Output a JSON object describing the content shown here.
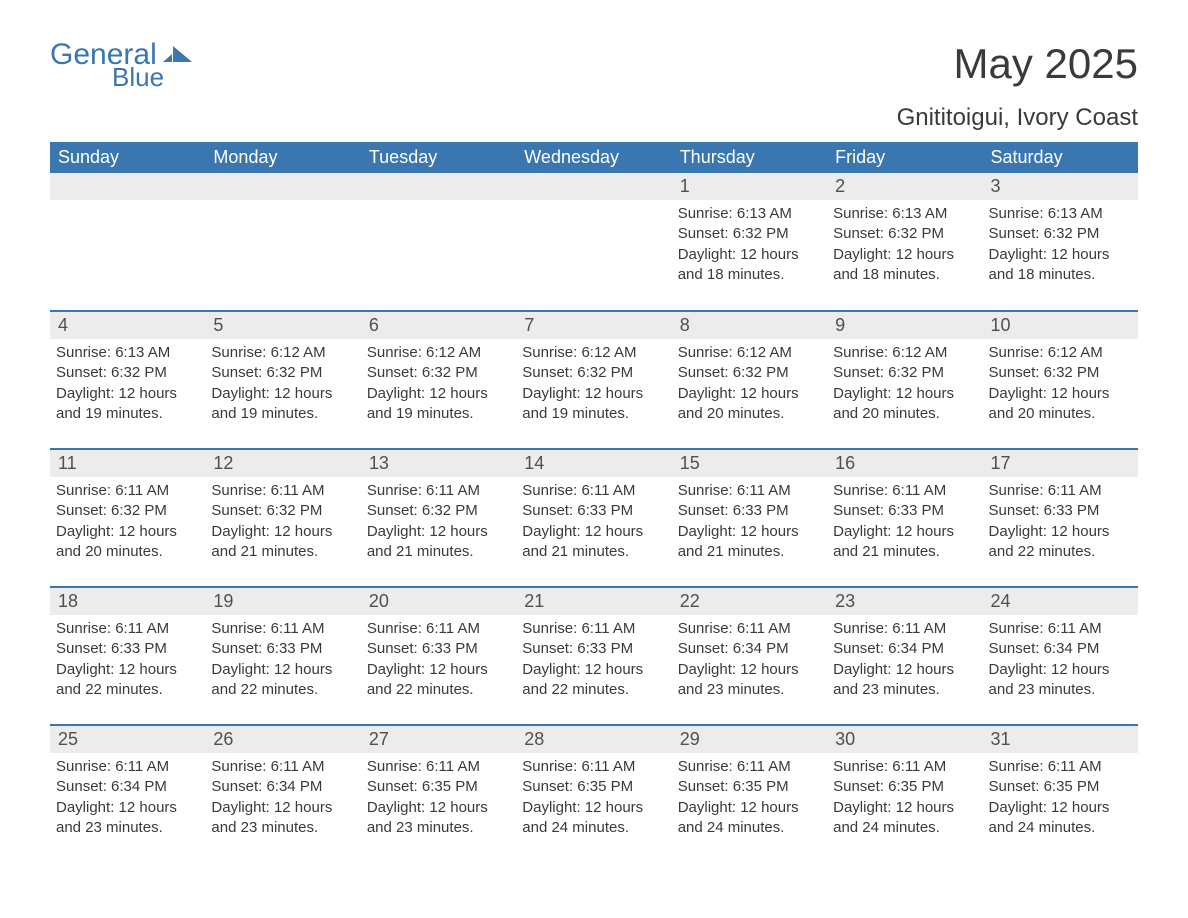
{
  "logo": {
    "general": "General",
    "blue": "Blue"
  },
  "title": "May 2025",
  "subtitle": "Gnititoigui, Ivory Coast",
  "colors": {
    "header_bg": "#3a76b0",
    "header_fg": "#ffffff",
    "daynum_bg": "#ececec",
    "body_text": "#3a3a3a",
    "logo_color": "#3a76b0"
  },
  "weekdays": [
    "Sunday",
    "Monday",
    "Tuesday",
    "Wednesday",
    "Thursday",
    "Friday",
    "Saturday"
  ],
  "weeks": [
    [
      {
        "day": "",
        "details": []
      },
      {
        "day": "",
        "details": []
      },
      {
        "day": "",
        "details": []
      },
      {
        "day": "",
        "details": []
      },
      {
        "day": "1",
        "details": [
          "Sunrise: 6:13 AM",
          "Sunset: 6:32 PM",
          "Daylight: 12 hours and 18 minutes."
        ]
      },
      {
        "day": "2",
        "details": [
          "Sunrise: 6:13 AM",
          "Sunset: 6:32 PM",
          "Daylight: 12 hours and 18 minutes."
        ]
      },
      {
        "day": "3",
        "details": [
          "Sunrise: 6:13 AM",
          "Sunset: 6:32 PM",
          "Daylight: 12 hours and 18 minutes."
        ]
      }
    ],
    [
      {
        "day": "4",
        "details": [
          "Sunrise: 6:13 AM",
          "Sunset: 6:32 PM",
          "Daylight: 12 hours and 19 minutes."
        ]
      },
      {
        "day": "5",
        "details": [
          "Sunrise: 6:12 AM",
          "Sunset: 6:32 PM",
          "Daylight: 12 hours and 19 minutes."
        ]
      },
      {
        "day": "6",
        "details": [
          "Sunrise: 6:12 AM",
          "Sunset: 6:32 PM",
          "Daylight: 12 hours and 19 minutes."
        ]
      },
      {
        "day": "7",
        "details": [
          "Sunrise: 6:12 AM",
          "Sunset: 6:32 PM",
          "Daylight: 12 hours and 19 minutes."
        ]
      },
      {
        "day": "8",
        "details": [
          "Sunrise: 6:12 AM",
          "Sunset: 6:32 PM",
          "Daylight: 12 hours and 20 minutes."
        ]
      },
      {
        "day": "9",
        "details": [
          "Sunrise: 6:12 AM",
          "Sunset: 6:32 PM",
          "Daylight: 12 hours and 20 minutes."
        ]
      },
      {
        "day": "10",
        "details": [
          "Sunrise: 6:12 AM",
          "Sunset: 6:32 PM",
          "Daylight: 12 hours and 20 minutes."
        ]
      }
    ],
    [
      {
        "day": "11",
        "details": [
          "Sunrise: 6:11 AM",
          "Sunset: 6:32 PM",
          "Daylight: 12 hours and 20 minutes."
        ]
      },
      {
        "day": "12",
        "details": [
          "Sunrise: 6:11 AM",
          "Sunset: 6:32 PM",
          "Daylight: 12 hours and 21 minutes."
        ]
      },
      {
        "day": "13",
        "details": [
          "Sunrise: 6:11 AM",
          "Sunset: 6:32 PM",
          "Daylight: 12 hours and 21 minutes."
        ]
      },
      {
        "day": "14",
        "details": [
          "Sunrise: 6:11 AM",
          "Sunset: 6:33 PM",
          "Daylight: 12 hours and 21 minutes."
        ]
      },
      {
        "day": "15",
        "details": [
          "Sunrise: 6:11 AM",
          "Sunset: 6:33 PM",
          "Daylight: 12 hours and 21 minutes."
        ]
      },
      {
        "day": "16",
        "details": [
          "Sunrise: 6:11 AM",
          "Sunset: 6:33 PM",
          "Daylight: 12 hours and 21 minutes."
        ]
      },
      {
        "day": "17",
        "details": [
          "Sunrise: 6:11 AM",
          "Sunset: 6:33 PM",
          "Daylight: 12 hours and 22 minutes."
        ]
      }
    ],
    [
      {
        "day": "18",
        "details": [
          "Sunrise: 6:11 AM",
          "Sunset: 6:33 PM",
          "Daylight: 12 hours and 22 minutes."
        ]
      },
      {
        "day": "19",
        "details": [
          "Sunrise: 6:11 AM",
          "Sunset: 6:33 PM",
          "Daylight: 12 hours and 22 minutes."
        ]
      },
      {
        "day": "20",
        "details": [
          "Sunrise: 6:11 AM",
          "Sunset: 6:33 PM",
          "Daylight: 12 hours and 22 minutes."
        ]
      },
      {
        "day": "21",
        "details": [
          "Sunrise: 6:11 AM",
          "Sunset: 6:33 PM",
          "Daylight: 12 hours and 22 minutes."
        ]
      },
      {
        "day": "22",
        "details": [
          "Sunrise: 6:11 AM",
          "Sunset: 6:34 PM",
          "Daylight: 12 hours and 23 minutes."
        ]
      },
      {
        "day": "23",
        "details": [
          "Sunrise: 6:11 AM",
          "Sunset: 6:34 PM",
          "Daylight: 12 hours and 23 minutes."
        ]
      },
      {
        "day": "24",
        "details": [
          "Sunrise: 6:11 AM",
          "Sunset: 6:34 PM",
          "Daylight: 12 hours and 23 minutes."
        ]
      }
    ],
    [
      {
        "day": "25",
        "details": [
          "Sunrise: 6:11 AM",
          "Sunset: 6:34 PM",
          "Daylight: 12 hours and 23 minutes."
        ]
      },
      {
        "day": "26",
        "details": [
          "Sunrise: 6:11 AM",
          "Sunset: 6:34 PM",
          "Daylight: 12 hours and 23 minutes."
        ]
      },
      {
        "day": "27",
        "details": [
          "Sunrise: 6:11 AM",
          "Sunset: 6:35 PM",
          "Daylight: 12 hours and 23 minutes."
        ]
      },
      {
        "day": "28",
        "details": [
          "Sunrise: 6:11 AM",
          "Sunset: 6:35 PM",
          "Daylight: 12 hours and 24 minutes."
        ]
      },
      {
        "day": "29",
        "details": [
          "Sunrise: 6:11 AM",
          "Sunset: 6:35 PM",
          "Daylight: 12 hours and 24 minutes."
        ]
      },
      {
        "day": "30",
        "details": [
          "Sunrise: 6:11 AM",
          "Sunset: 6:35 PM",
          "Daylight: 12 hours and 24 minutes."
        ]
      },
      {
        "day": "31",
        "details": [
          "Sunrise: 6:11 AM",
          "Sunset: 6:35 PM",
          "Daylight: 12 hours and 24 minutes."
        ]
      }
    ]
  ]
}
